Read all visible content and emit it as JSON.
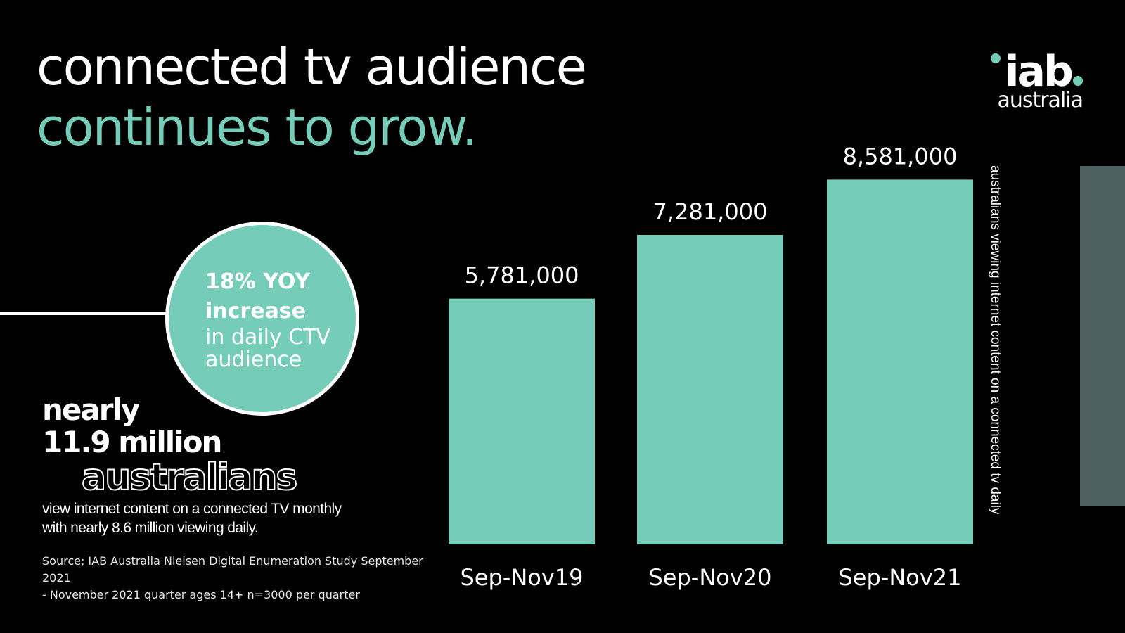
{
  "title": {
    "line1": "connected tv audience",
    "line2": "continues to grow",
    "dot": "."
  },
  "logo": {
    "main": "iab",
    "sub": "australia"
  },
  "callout": {
    "strong_line1": "18% YOY",
    "strong_line2": "increase",
    "light_line1": "in daily CTV",
    "light_line2": "audience"
  },
  "stat": {
    "nearly": "nearly",
    "million": "11.9 million",
    "australians": "australians",
    "desc_line1": "view internet content on a connected TV monthly",
    "desc_line2": "with nearly 8.6 million viewing daily."
  },
  "source": {
    "line1": "Source; IAB Australia Nielsen Digital Enumeration Study September 2021",
    "line2": "- November 2021 quarter ages 14+ n=3000 per quarter"
  },
  "colors": {
    "accent": "#74ccb9",
    "background": "#000000",
    "panel": "#4f6060"
  },
  "chart_data": {
    "type": "bar",
    "categories": [
      "Sep-Nov19",
      "Sep-Nov20",
      "Sep-Nov21"
    ],
    "values": [
      5781000,
      7281000,
      8581000
    ],
    "value_labels": [
      "5,781,000",
      "7,281,000",
      "8,581,000"
    ],
    "title": "",
    "xlabel": "",
    "ylabel": "australians viewing internet content on a connected tv daily",
    "ylim": [
      0,
      9200000
    ],
    "grid": false,
    "bar_color": "#74ccb9"
  }
}
